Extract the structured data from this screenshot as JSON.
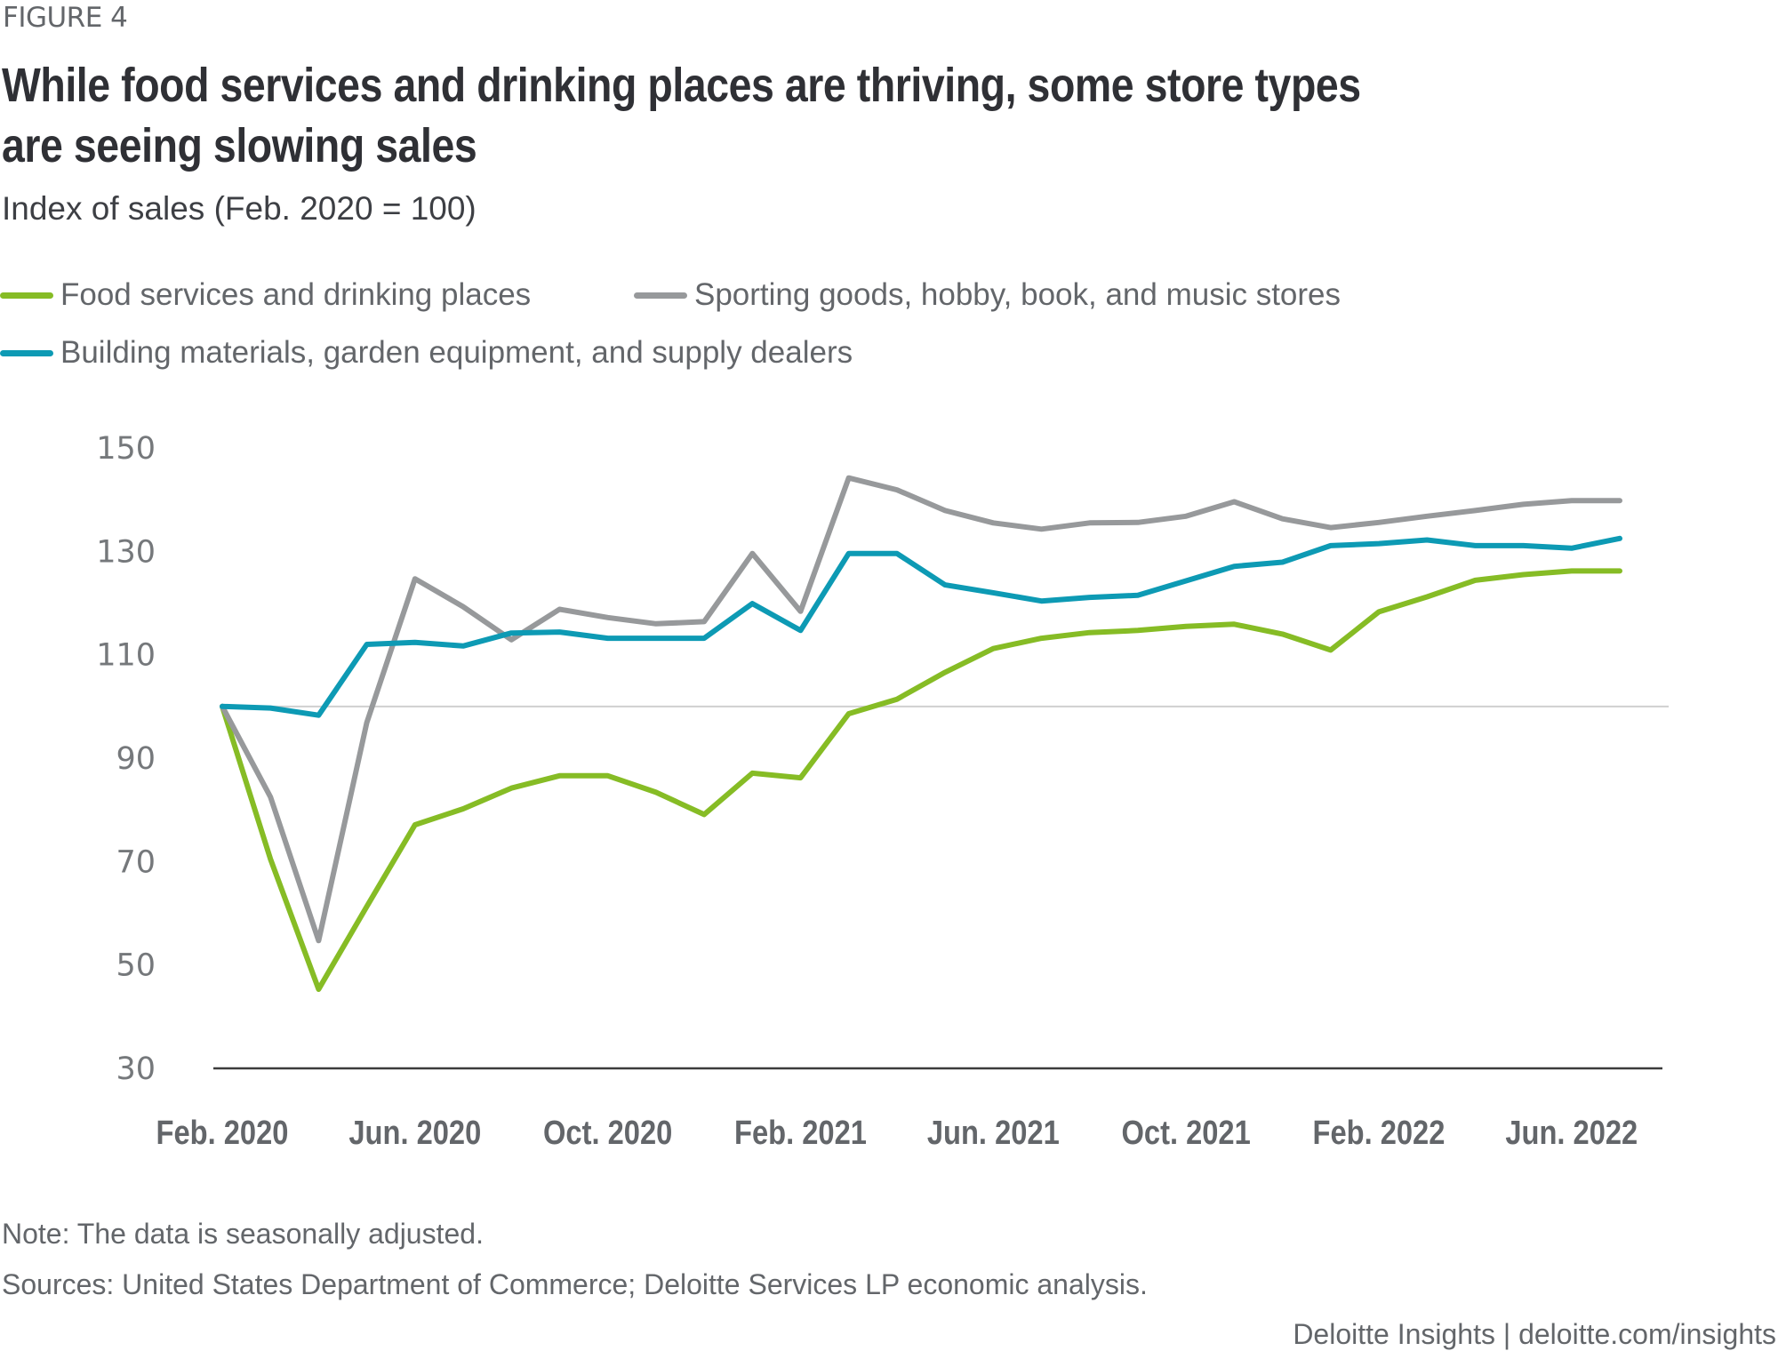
{
  "figure_label": "FIGURE 4",
  "title": "While food services and drinking places are thriving, some store types are seeing slowing sales",
  "subtitle": "Index of sales (Feb. 2020 = 100)",
  "legend": [
    {
      "label": "Food services and drinking places",
      "color": "#86BC25"
    },
    {
      "label": "Sporting goods, hobby, book, and music stores",
      "color": "#97999B"
    },
    {
      "label": "Building materials, garden equipment, and supply dealers",
      "color": "#0D9AB4"
    }
  ],
  "footer": {
    "note": "Note: The data is seasonally adjusted.",
    "sources": "Sources: United States Department of Commerce; Deloitte Services LP economic analysis.",
    "brand": "Deloitte Insights | deloitte.com/insights"
  },
  "chart_data": {
    "type": "line",
    "title": "While food services and drinking places are thriving, some store types are seeing slowing sales",
    "subtitle": "Index of sales (Feb. 2020 = 100)",
    "xlabel": "",
    "ylabel": "Index of sales (Feb. 2020 = 100)",
    "ylim": [
      30,
      150
    ],
    "yticks": [
      150,
      130,
      110,
      90,
      70,
      50,
      30
    ],
    "x": [
      "Feb. 2020",
      "Mar. 2020",
      "Apr. 2020",
      "May 2020",
      "Jun. 2020",
      "Jul. 2020",
      "Aug. 2020",
      "Sep. 2020",
      "Oct. 2020",
      "Nov. 2020",
      "Dec. 2020",
      "Jan. 2021",
      "Feb. 2021",
      "Mar. 2021",
      "Apr. 2021",
      "May 2021",
      "Jun. 2021",
      "Jul. 2021",
      "Aug. 2021",
      "Sep. 2021",
      "Oct. 2021",
      "Nov. 2021",
      "Dec. 2021",
      "Jan. 2022",
      "Feb. 2022",
      "Mar. 2022",
      "Apr. 2022",
      "May 2022",
      "Jun. 2022",
      "Jul. 2022"
    ],
    "xtick_labels": [
      {
        "index": 0,
        "label": "Feb. 2020"
      },
      {
        "index": 4,
        "label": "Jun. 2020"
      },
      {
        "index": 8,
        "label": "Oct. 2020"
      },
      {
        "index": 12,
        "label": "Feb. 2021"
      },
      {
        "index": 16,
        "label": "Jun. 2021"
      },
      {
        "index": 20,
        "label": "Oct. 2021"
      },
      {
        "index": 24,
        "label": "Feb. 2022"
      },
      {
        "index": 28,
        "label": "Jun. 2022"
      }
    ],
    "reference_line": 100,
    "legend_position": "top-left",
    "grid": false,
    "series": [
      {
        "name": "Food services and drinking places",
        "color": "#86BC25",
        "values": [
          100,
          70.5,
          45.3,
          61.3,
          77.1,
          80.2,
          84.2,
          86.6,
          86.6,
          83.4,
          79.1,
          87.1,
          86.2,
          98.6,
          101.4,
          106.6,
          111.2,
          113.2,
          114.3,
          114.7,
          115.5,
          115.9,
          114.0,
          110.9,
          118.3,
          121.2,
          124.4,
          125.5,
          126.2,
          126.2
        ]
      },
      {
        "name": "Sporting goods, hobby, book, and music stores",
        "color": "#97999B",
        "values": [
          100,
          82.5,
          54.7,
          96.9,
          124.7,
          119.3,
          112.9,
          118.8,
          117.2,
          116.0,
          116.4,
          129.6,
          118.4,
          144.2,
          141.9,
          137.9,
          135.5,
          134.3,
          135.5,
          135.6,
          136.8,
          139.6,
          136.3,
          134.6,
          135.6,
          136.8,
          137.9,
          139.1,
          139.8,
          139.8
        ]
      },
      {
        "name": "Building materials, garden equipment, and supply dealers",
        "color": "#0D9AB4",
        "values": [
          100,
          99.7,
          98.3,
          112.0,
          112.4,
          111.7,
          114.2,
          114.4,
          113.2,
          113.2,
          113.2,
          119.9,
          114.7,
          129.6,
          129.6,
          123.5,
          122.0,
          120.4,
          121.1,
          121.5,
          124.3,
          127.1,
          127.9,
          131.1,
          131.5,
          132.2,
          131.1,
          131.1,
          130.6,
          132.5
        ]
      }
    ]
  }
}
